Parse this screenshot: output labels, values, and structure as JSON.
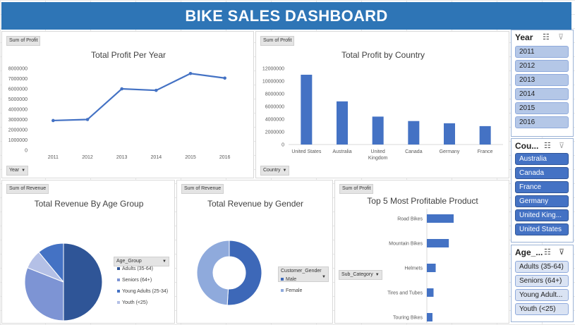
{
  "header": {
    "title": "BIKE SALES DASHBOARD"
  },
  "panel_profit_year": {
    "field_pill": "Sum of Profit",
    "filter_label": "Year",
    "chart_data": {
      "type": "line",
      "title": "Total Profit Per Year",
      "categories": [
        "2011",
        "2012",
        "2013",
        "2014",
        "2015",
        "2016"
      ],
      "values": [
        2900000,
        3000000,
        6000000,
        5850000,
        7500000,
        7050000
      ],
      "ylim": [
        0,
        8000000
      ],
      "yticks": [
        "0",
        "1000000",
        "2000000",
        "3000000",
        "4000000",
        "5000000",
        "6000000",
        "7000000",
        "8000000"
      ],
      "color": "#4472c4"
    }
  },
  "panel_profit_country": {
    "field_pill": "Sum of Profit",
    "filter_label": "Country",
    "chart_data": {
      "type": "bar",
      "title": "Total Profit by Country",
      "categories": [
        "United States",
        "Australia",
        "United Kingdom",
        "Canada",
        "Germany",
        "France"
      ],
      "values": [
        11000000,
        6800000,
        4400000,
        3700000,
        3350000,
        2900000
      ],
      "ylim": [
        0,
        12000000
      ],
      "yticks": [
        "0",
        "2000000",
        "4000000",
        "6000000",
        "8000000",
        "10000000",
        "12000000"
      ],
      "color": "#4472c4"
    }
  },
  "panel_revenue_age": {
    "field_pill": "Sum of Revenue",
    "legend_filter": "Age_Group",
    "chart_data": {
      "type": "pie",
      "title": "Total Revenue By Age Group",
      "categories": [
        "Adults (35-64)",
        "Seniors (64+)",
        "Young Adults (25-34)",
        "Youth (<25)"
      ],
      "values": [
        50,
        31,
        11,
        8
      ],
      "colors": [
        "#2f5597",
        "#7d94d4",
        "#4472c4",
        "#b4c0e6"
      ]
    }
  },
  "panel_revenue_gender": {
    "field_pill": "Sum of Revenue",
    "legend_filter": "Customer_Gender",
    "chart_data": {
      "type": "pie",
      "title": "Total Revenue by Gender",
      "categories": [
        "Male",
        "Female"
      ],
      "values": [
        51,
        49
      ],
      "colors": [
        "#3d68b8",
        "#8faadc"
      ]
    }
  },
  "panel_top_products": {
    "field_pill": "Sum of Profit",
    "filter_label": "Sub_Category",
    "chart_data": {
      "type": "bar",
      "title": "Top 5 Most Profitable Product",
      "categories": [
        "Road Bikes",
        "Mountain Bikes",
        "Helmets",
        "Tires and Tubes",
        "Touring Bikes"
      ],
      "values": [
        100,
        82,
        33,
        25,
        21
      ],
      "color": "#4472c4"
    }
  },
  "slicer_year": {
    "title": "Year",
    "items": [
      "2011",
      "2012",
      "2013",
      "2014",
      "2015",
      "2016"
    ]
  },
  "slicer_country": {
    "title": "Cou...",
    "items": [
      "Australia",
      "Canada",
      "France",
      "Germany",
      "United King...",
      "United States"
    ]
  },
  "slicer_age": {
    "title": "Age_...",
    "items": [
      "Adults (35-64)",
      "Seniors (64+)",
      "Young Adult...",
      "Youth (<25)"
    ]
  },
  "icons": {
    "multiselect": "multi-select-icon",
    "clear_filter": "clear-filter-icon"
  }
}
